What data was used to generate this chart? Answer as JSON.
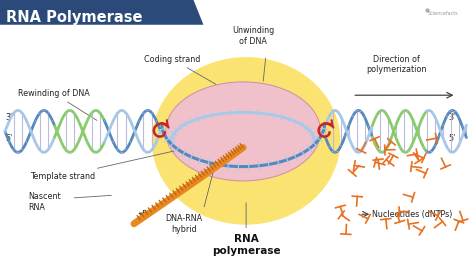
{
  "title": "RNA Polymerase",
  "title_bg": "#2b4a7a",
  "title_color": "#ffffff",
  "bg_color": "#ffffff",
  "labels": {
    "coding_strand": "Coding strand",
    "rewinding": "Rewinding of DNA",
    "unwinding": "Unwinding\nof DNA",
    "direction": "Direction of\npolymerization",
    "template_strand": "Template strand",
    "nascent_rna": "Nascent\nRNA",
    "dna_rna_hybrid": "DNA-RNA\nhybrid",
    "rna_polymerase": "RNA\npolymerase",
    "nucleotides": "Nucleotides (dNTPs)",
    "three_prime_left": "3'",
    "five_prime_left": "5'",
    "three_prime_right": "3'",
    "five_prime_right": "5'",
    "five_prime_nascent": "5'"
  },
  "colors": {
    "dna_blue_light": "#a8c8e8",
    "dna_blue_dark": "#5588bb",
    "dna_green": "#88cc66",
    "rna_orange": "#f4a030",
    "polymerase_yellow": "#fae060",
    "polymerase_pink": "#f0c0d0",
    "hybrid_orange": "#e88820",
    "red_swirl": "#cc2222",
    "nucleotide_orange": "#e87020",
    "crosslink_color": "#bbbbdd",
    "arrow_color": "#444444"
  },
  "watermark": "Sciencefacts"
}
